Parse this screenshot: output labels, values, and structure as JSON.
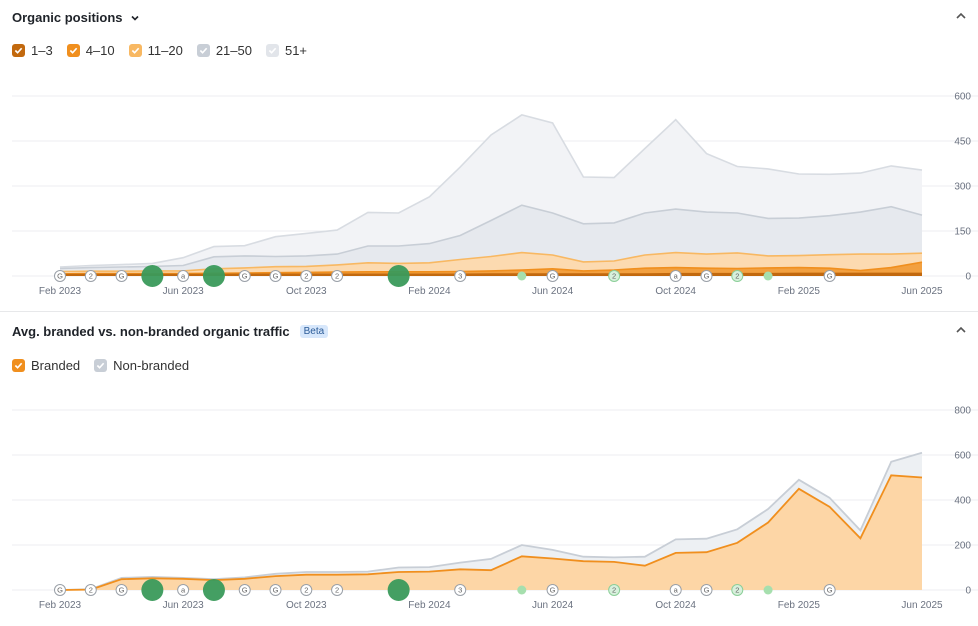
{
  "top": {
    "title": "Organic positions",
    "legend": [
      {
        "label": "1–3",
        "color": "#c2690e"
      },
      {
        "label": "4–10",
        "color": "#f08f1e"
      },
      {
        "label": "11–20",
        "color": "#f8b862"
      },
      {
        "label": "21–50",
        "color": "#c8ced6"
      },
      {
        "label": "51+",
        "color": "#e2e5ea"
      }
    ]
  },
  "bottom": {
    "title": "Avg. branded vs. non-branded organic traffic",
    "badge": "Beta",
    "legend": [
      {
        "label": "Branded",
        "color": "#f08f1e"
      },
      {
        "label": "Non-branded",
        "color": "#c8ced6"
      }
    ]
  },
  "x_labels": [
    "Feb 2023",
    "Jun 2023",
    "Oct 2023",
    "Feb 2024",
    "Jun 2024",
    "Oct 2024",
    "Feb 2025",
    "Jun 2025"
  ],
  "markers": [
    {
      "x": 0,
      "kind": "G"
    },
    {
      "x": 1,
      "kind": "2"
    },
    {
      "x": 2,
      "kind": "G"
    },
    {
      "x": 3,
      "kind": "big"
    },
    {
      "x": 4,
      "kind": "a"
    },
    {
      "x": 5,
      "kind": "big"
    },
    {
      "x": 6,
      "kind": "G"
    },
    {
      "x": 7,
      "kind": "G"
    },
    {
      "x": 8,
      "kind": "2"
    },
    {
      "x": 9,
      "kind": "2"
    },
    {
      "x": 11,
      "kind": "big"
    },
    {
      "x": 13,
      "kind": "3"
    },
    {
      "x": 15,
      "kind": "dot"
    },
    {
      "x": 16,
      "kind": "G"
    },
    {
      "x": 18,
      "kind": "2g"
    },
    {
      "x": 20,
      "kind": "a"
    },
    {
      "x": 21,
      "kind": "G"
    },
    {
      "x": 22,
      "kind": "2g"
    },
    {
      "x": 23,
      "kind": "dot"
    },
    {
      "x": 25,
      "kind": "G"
    }
  ],
  "chart_data": [
    {
      "type": "area",
      "title": "Organic positions",
      "ylim": [
        0,
        600
      ],
      "yticks": [
        0,
        150,
        300,
        450,
        600
      ],
      "x": [
        "Feb 2023",
        "Mar 2023",
        "Apr 2023",
        "May 2023",
        "Jun 2023",
        "Jul 2023",
        "Aug 2023",
        "Sep 2023",
        "Oct 2023",
        "Nov 2023",
        "Dec 2023",
        "Jan 2024",
        "Feb 2024",
        "Mar 2024",
        "Apr 2024",
        "May 2024",
        "Jun 2024",
        "Jul 2024",
        "Aug 2024",
        "Sep 2024",
        "Oct 2024",
        "Nov 2024",
        "Dec 2024",
        "Jan 2025",
        "Feb 2025",
        "Mar 2025",
        "Apr 2025",
        "May 2025",
        "Jun 2025"
      ],
      "stacked": true,
      "series": [
        {
          "name": "1–3",
          "color": "#c2690e",
          "values": [
            4,
            4,
            4,
            4,
            4,
            4,
            5,
            5,
            5,
            5,
            5,
            5,
            5,
            5,
            6,
            6,
            6,
            6,
            6,
            6,
            7,
            7,
            7,
            7,
            8,
            8,
            8,
            8,
            8
          ]
        },
        {
          "name": "4–10",
          "color": "#f08f1e",
          "values": [
            3,
            4,
            4,
            4,
            4,
            5,
            5,
            6,
            7,
            8,
            9,
            9,
            9,
            10,
            11,
            14,
            18,
            11,
            14,
            20,
            21,
            19,
            18,
            20,
            20,
            18,
            10,
            20,
            38
          ]
        },
        {
          "name": "11–20",
          "color": "#f8b862",
          "values": [
            8,
            8,
            8,
            9,
            9,
            15,
            17,
            20,
            20,
            24,
            30,
            28,
            30,
            40,
            48,
            58,
            46,
            30,
            30,
            44,
            50,
            47,
            52,
            40,
            40,
            45,
            55,
            45,
            30
          ]
        },
        {
          "name": "21–50",
          "color": "#c8ced6",
          "values": [
            10,
            12,
            14,
            15,
            18,
            40,
            40,
            34,
            35,
            36,
            56,
            58,
            64,
            80,
            120,
            158,
            140,
            127,
            127,
            140,
            145,
            140,
            133,
            125,
            125,
            130,
            140,
            158,
            127
          ]
        },
        {
          "name": "51+",
          "color": "#e2e5ea",
          "values": [
            5,
            7,
            8,
            10,
            26,
            34,
            34,
            66,
            75,
            80,
            112,
            110,
            156,
            228,
            285,
            301,
            300,
            156,
            151,
            215,
            298,
            195,
            155,
            165,
            147,
            138,
            130,
            136,
            150
          ]
        }
      ]
    },
    {
      "type": "area",
      "title": "Avg. branded vs. non-branded organic traffic",
      "ylim": [
        0,
        800
      ],
      "yticks": [
        0,
        200,
        400,
        600,
        800
      ],
      "x": [
        "Feb 2023",
        "Mar 2023",
        "Apr 2023",
        "May 2023",
        "Jun 2023",
        "Jul 2023",
        "Aug 2023",
        "Sep 2023",
        "Oct 2023",
        "Nov 2023",
        "Dec 2023",
        "Jan 2024",
        "Feb 2024",
        "Mar 2024",
        "Apr 2024",
        "May 2024",
        "Jun 2024",
        "Jul 2024",
        "Aug 2024",
        "Sep 2024",
        "Oct 2024",
        "Nov 2024",
        "Dec 2024",
        "Jan 2025",
        "Feb 2025",
        "Mar 2025",
        "Apr 2025",
        "May 2025",
        "Jun 2025"
      ],
      "stacked": true,
      "series": [
        {
          "name": "Branded",
          "color": "#f08f1e",
          "values": [
            0,
            2,
            48,
            52,
            50,
            44,
            50,
            62,
            68,
            68,
            70,
            80,
            82,
            92,
            88,
            150,
            140,
            128,
            125,
            108,
            165,
            168,
            210,
            300,
            450,
            370,
            230,
            510,
            500
          ]
        },
        {
          "name": "Non-branded",
          "color": "#c8ced6",
          "values": [
            0,
            2,
            6,
            6,
            4,
            4,
            6,
            10,
            12,
            12,
            12,
            20,
            20,
            30,
            50,
            50,
            38,
            20,
            20,
            40,
            60,
            60,
            60,
            60,
            40,
            40,
            35,
            60,
            110
          ]
        }
      ]
    }
  ]
}
